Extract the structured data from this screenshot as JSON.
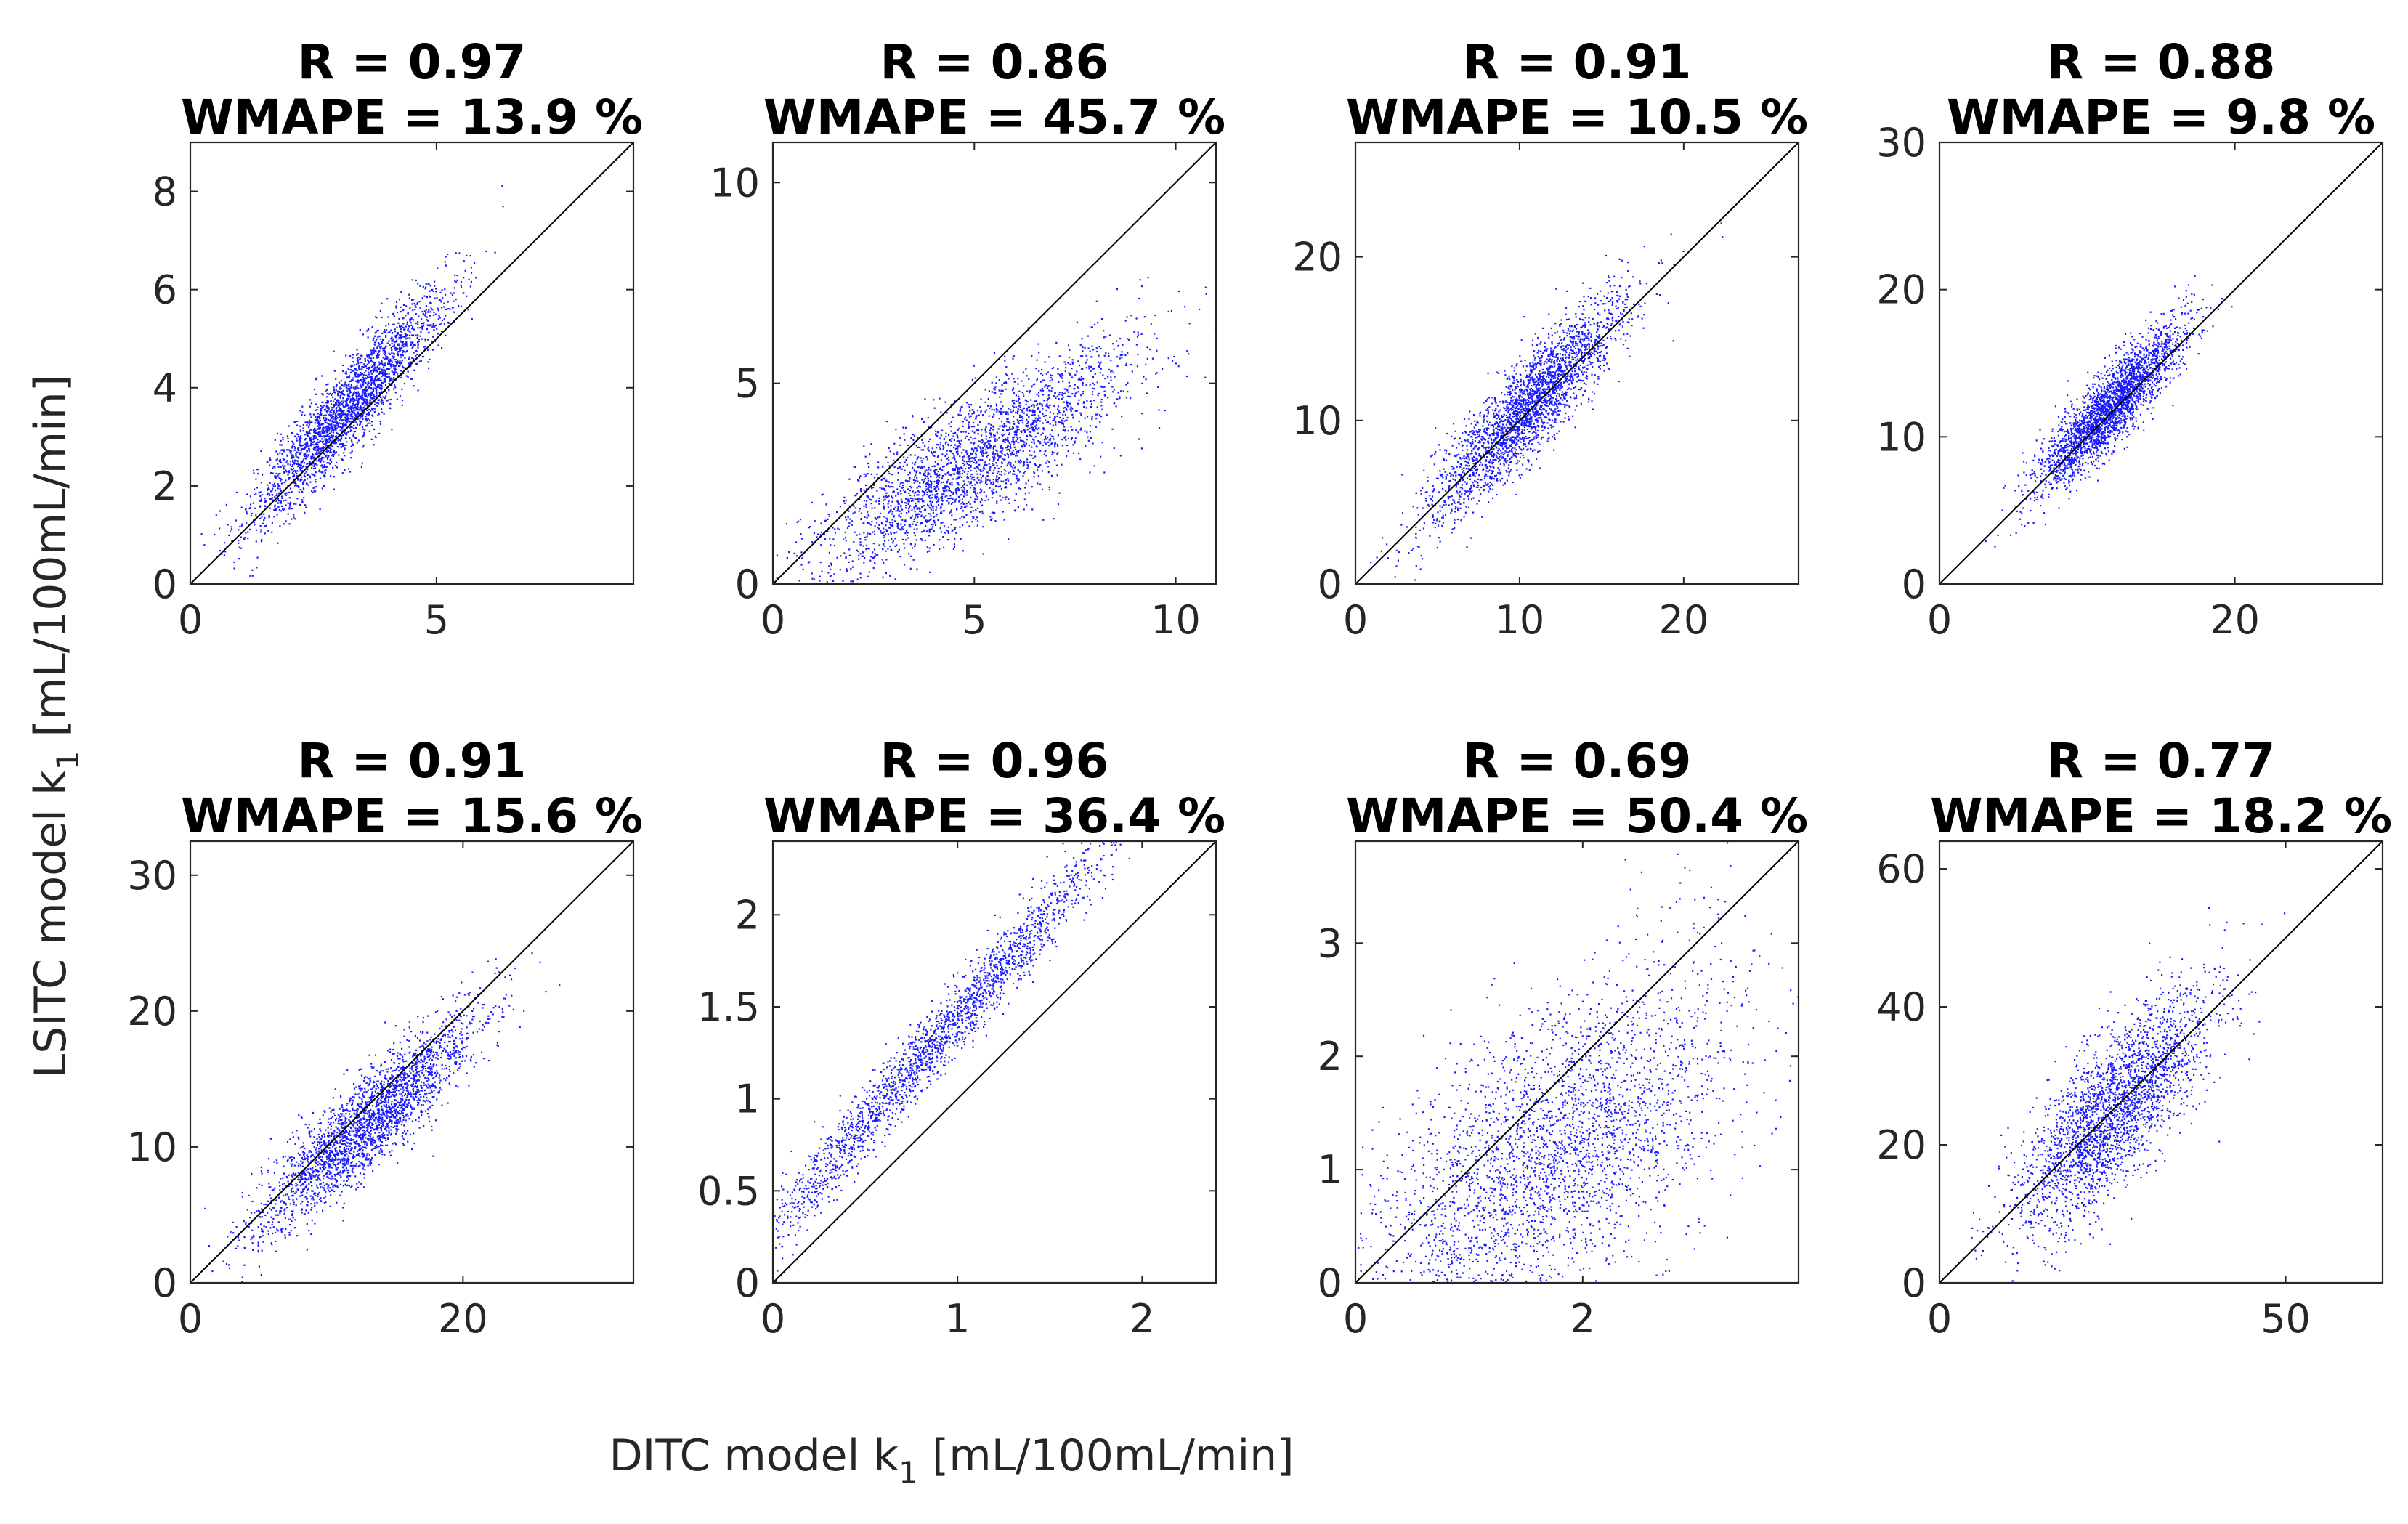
{
  "figure": {
    "xlabel": {
      "pre": "DITC model k",
      "sub": "1",
      "post": " [mL/100mL/min]"
    },
    "ylabel": {
      "pre": "LSITC model k",
      "sub": "1",
      "post": " [mL/100mL/min]"
    }
  },
  "colors": {
    "points": "#1a1aff",
    "identity_line": "#000000",
    "axes": "#262626"
  },
  "chart_data": [
    {
      "type": "scatter",
      "title_r": "R = 0.97",
      "title_w": "WMAPE = 13.9 %",
      "xlim": [
        0,
        9
      ],
      "ylim": [
        0,
        9
      ],
      "xticks": [
        0,
        5
      ],
      "xtick_labels": [
        "0",
        "5"
      ],
      "yticks": [
        0,
        2,
        4,
        6,
        8
      ],
      "ytick_labels": [
        "0",
        "2",
        "4",
        "6",
        "8"
      ],
      "identity_line": true,
      "n_points": 2600,
      "x_center": 3.2,
      "x_spread": 1.0,
      "slope": 1.1,
      "intercept": 0.1,
      "noise": 0.45
    },
    {
      "type": "scatter",
      "title_r": "R = 0.86",
      "title_w": "WMAPE = 45.7 %",
      "xlim": [
        0,
        11
      ],
      "ylim": [
        0,
        11
      ],
      "xticks": [
        0,
        5,
        10
      ],
      "xtick_labels": [
        "0",
        "5",
        "10"
      ],
      "yticks": [
        0,
        5,
        10
      ],
      "ytick_labels": [
        "0",
        "5",
        "10"
      ],
      "identity_line": true,
      "n_points": 2600,
      "x_center": 5.0,
      "x_spread": 2.0,
      "slope": 0.6,
      "intercept": 0.1,
      "noise": 0.8
    },
    {
      "type": "scatter",
      "title_r": "R = 0.91",
      "title_w": "WMAPE = 10.5 %",
      "xlim": [
        0,
        27
      ],
      "ylim": [
        0,
        27
      ],
      "xticks": [
        0,
        10,
        20
      ],
      "xtick_labels": [
        "0",
        "10",
        "20"
      ],
      "yticks": [
        0,
        10,
        20
      ],
      "ytick_labels": [
        "0",
        "10",
        "20"
      ],
      "identity_line": true,
      "n_points": 2600,
      "x_center": 10.5,
      "x_spread": 3.0,
      "slope": 1.0,
      "intercept": 0.3,
      "noise": 1.5
    },
    {
      "type": "scatter",
      "title_r": "R = 0.88",
      "title_w": "WMAPE = 9.8 %",
      "xlim": [
        0,
        30
      ],
      "ylim": [
        0,
        30
      ],
      "xticks": [
        0,
        20
      ],
      "xtick_labels": [
        "0",
        "20"
      ],
      "yticks": [
        0,
        10,
        20,
        30
      ],
      "ytick_labels": [
        "0",
        "10",
        "20",
        "30"
      ],
      "identity_line": true,
      "n_points": 2600,
      "x_center": 11.5,
      "x_spread": 2.5,
      "slope": 1.0,
      "intercept": 0.5,
      "noise": 1.3
    },
    {
      "type": "scatter",
      "title_r": "R = 0.91",
      "title_w": "WMAPE = 15.6 %",
      "xlim": [
        0,
        32.5
      ],
      "ylim": [
        0,
        32.5
      ],
      "xticks": [
        0,
        20
      ],
      "xtick_labels": [
        "0",
        "20"
      ],
      "yticks": [
        0,
        10,
        20,
        30
      ],
      "ytick_labels": [
        "0",
        "10",
        "20",
        "30"
      ],
      "identity_line": true,
      "n_points": 2600,
      "x_center": 13.0,
      "x_spread": 4.0,
      "slope": 0.88,
      "intercept": 0.5,
      "noise": 1.8
    },
    {
      "type": "scatter",
      "title_r": "R = 0.96",
      "title_w": "WMAPE = 36.4 %",
      "xlim": [
        0,
        2.4
      ],
      "ylim": [
        0,
        2.4
      ],
      "xticks": [
        0,
        1,
        2
      ],
      "xtick_labels": [
        "0",
        "1",
        "2"
      ],
      "yticks": [
        0,
        0.5,
        1,
        1.5,
        2
      ],
      "ytick_labels": [
        "0",
        "0.5",
        "1",
        "1.5",
        "2"
      ],
      "identity_line": true,
      "n_points": 2200,
      "x_center": 0.9,
      "x_spread": 0.55,
      "slope": 1.15,
      "intercept": 0.3,
      "noise": 0.1
    },
    {
      "type": "scatter",
      "title_r": "R = 0.69",
      "title_w": "WMAPE = 50.4 %",
      "xlim": [
        0,
        3.9
      ],
      "ylim": [
        0,
        3.9
      ],
      "xticks": [
        0,
        2
      ],
      "xtick_labels": [
        "0",
        "2"
      ],
      "yticks": [
        0,
        1,
        2,
        3
      ],
      "ytick_labels": [
        "0",
        "1",
        "2",
        "3"
      ],
      "identity_line": true,
      "n_points": 3000,
      "x_center": 1.7,
      "x_spread": 0.8,
      "slope": 0.6,
      "intercept": 0.1,
      "noise": 0.65
    },
    {
      "type": "scatter",
      "title_r": "R = 0.77",
      "title_w": "WMAPE = 18.2 %",
      "xlim": [
        0,
        64
      ],
      "ylim": [
        0,
        64
      ],
      "xticks": [
        0,
        50
      ],
      "xtick_labels": [
        "0",
        "50"
      ],
      "yticks": [
        0,
        20,
        40,
        60
      ],
      "ytick_labels": [
        "0",
        "20",
        "40",
        "60"
      ],
      "identity_line": true,
      "n_points": 2600,
      "x_center": 25.0,
      "x_spread": 7.0,
      "slope": 0.95,
      "intercept": 1.5,
      "noise": 5.5
    }
  ]
}
